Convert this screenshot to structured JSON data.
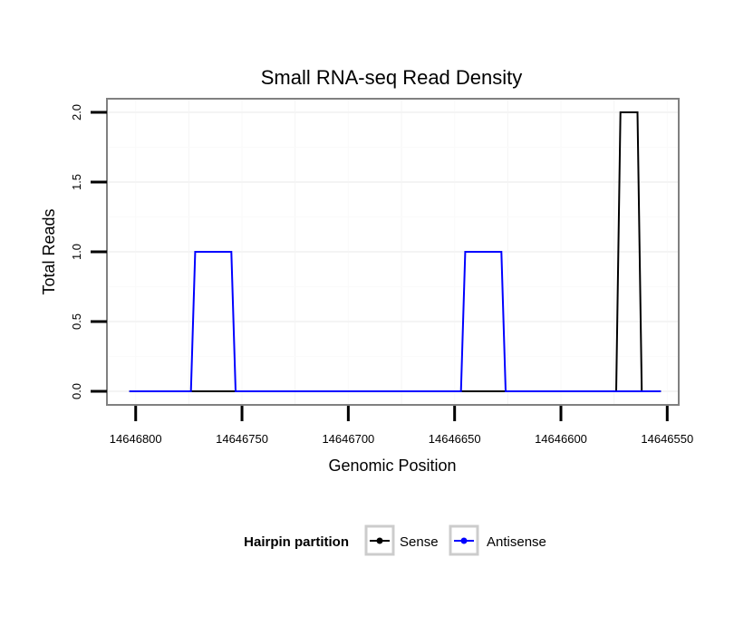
{
  "chart_data": {
    "type": "line",
    "title": "Small RNA-seq Read Density",
    "xlabel": "Genomic Position",
    "ylabel": "Total Reads",
    "x_reversed": true,
    "xlim": [
      14646805,
      14646548
    ],
    "ylim": [
      0,
      2
    ],
    "x_ticks": [
      14646800,
      14646750,
      14646700,
      14646650,
      14646600,
      14646550
    ],
    "x_tick_labels": [
      "14646800",
      "14646750",
      "14646700",
      "14646650",
      "14646600",
      "14646550"
    ],
    "y_ticks": [
      0,
      0.5,
      1,
      1.5,
      2
    ],
    "y_tick_labels": [
      "0.0",
      "0.5",
      "1.0",
      "1.5",
      "2.0"
    ],
    "grid": true,
    "legend": {
      "title": "Hairpin partition",
      "position": "bottom"
    },
    "series": [
      {
        "name": "Sense",
        "color": "#000000",
        "x": [
          14646803,
          14646574,
          14646572,
          14646564,
          14646562,
          14646553
        ],
        "y": [
          0,
          0,
          2,
          2,
          0,
          0
        ]
      },
      {
        "name": "Antisense",
        "color": "#0000ff",
        "x": [
          14646803,
          14646774,
          14646772,
          14646755,
          14646753,
          14646647,
          14646645,
          14646628,
          14646626,
          14646574,
          14646572,
          14646564,
          14646562,
          14646553
        ],
        "y": [
          0,
          0,
          1,
          1,
          0,
          0,
          1,
          1,
          0,
          0,
          0,
          0,
          0,
          0
        ]
      }
    ]
  }
}
